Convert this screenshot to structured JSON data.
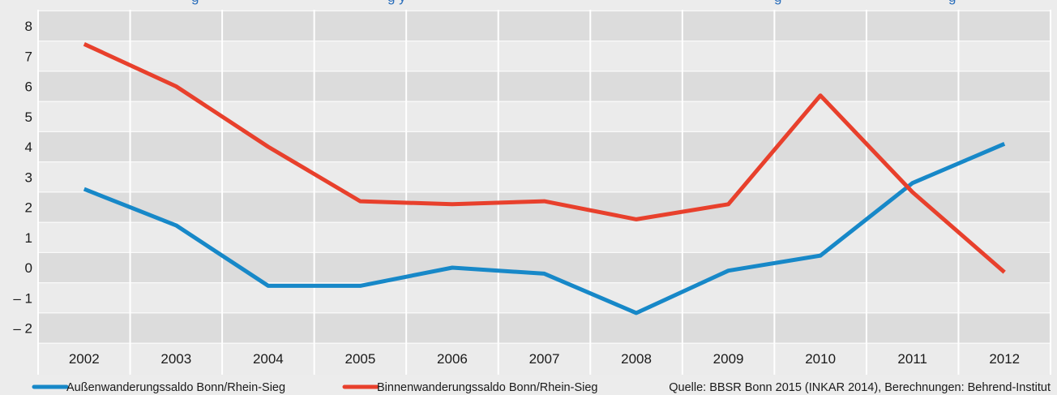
{
  "chart_data": {
    "type": "line",
    "title_fragments": [
      "g",
      "g y",
      "g",
      "g"
    ],
    "x": [
      "2002",
      "2003",
      "2004",
      "2005",
      "2006",
      "2007",
      "2008",
      "2009",
      "2010",
      "2011",
      "2012"
    ],
    "ylim": [
      -2.5,
      8.5
    ],
    "yticks": [
      "8",
      "7",
      "6",
      "5",
      "4",
      "3",
      "2",
      "1",
      "0",
      "– 1",
      "– 2"
    ],
    "ytick_values": [
      8,
      7,
      6,
      5,
      4,
      3,
      2,
      1,
      0,
      -1,
      -2
    ],
    "grid": "horizontal-bands",
    "legend_position": "bottom",
    "series": [
      {
        "name": "Außenwanderungssaldo Bonn/Rhein-Sieg",
        "color": "#1788c8",
        "values": [
          2.6,
          1.4,
          -0.6,
          -0.6,
          0.0,
          -0.2,
          -1.5,
          -0.1,
          0.4,
          2.8,
          4.1
        ]
      },
      {
        "name": "Binnenwanderungssaldo Bonn/Rhein-Sieg",
        "color": "#e8402c",
        "values": [
          7.4,
          6.0,
          4.0,
          2.2,
          2.1,
          2.2,
          1.6,
          2.1,
          5.7,
          2.5,
          -0.15
        ]
      }
    ],
    "source": "Quelle: BBSR Bonn 2015 (INKAR 2014), Berechnungen: Behrend-Institut"
  },
  "colors": {
    "background": "#ececec",
    "band_dark": "#dcdcdc",
    "band_light": "#ebebeb",
    "gridline": "#ffffff",
    "title": "#2a6ebb"
  }
}
